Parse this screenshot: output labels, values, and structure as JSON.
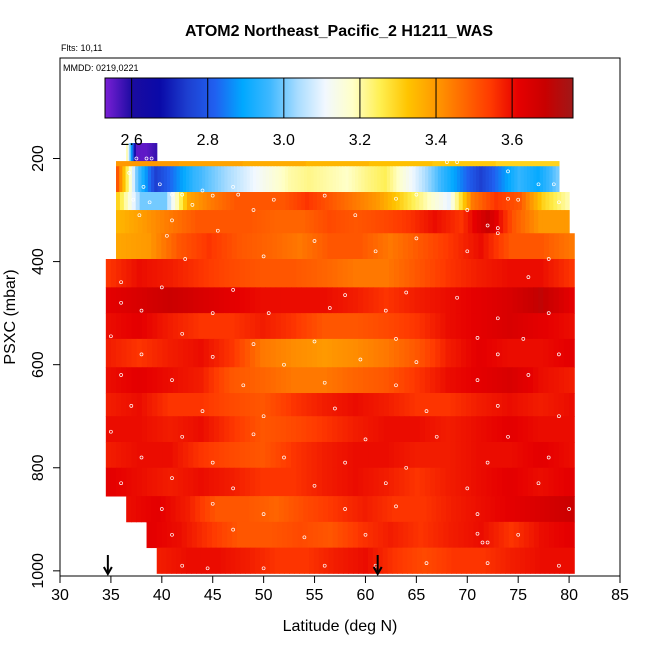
{
  "chart_data": {
    "type": "heatmap",
    "title": "ATOM2 Northeast_Pacific_2 H1211_WAS",
    "annotations": [
      "Flts: 10,11",
      "MMDD: 0219,0221"
    ],
    "xlabel": "Latitude (deg N)",
    "ylabel": "PSXC (mbar)",
    "xlim": [
      30,
      85
    ],
    "ylim": [
      1010,
      5
    ],
    "x_ticks": [
      30,
      35,
      40,
      45,
      50,
      55,
      60,
      65,
      70,
      75,
      80,
      85
    ],
    "y_ticks": [
      200,
      400,
      600,
      800,
      1000
    ],
    "colorbar": {
      "range": [
        2.53,
        3.76
      ],
      "ticks": [
        2.6,
        2.8,
        3.0,
        3.2,
        3.4,
        3.6
      ],
      "colors": [
        "#7a1fd6",
        "#1a0ba0",
        "#0a0aa8",
        "#1d3fd0",
        "#2060f0",
        "#00a8ff",
        "#3fb8ff",
        "#a8dcff",
        "#f2f8ff",
        "#ffffc8",
        "#ffef50",
        "#ffc400",
        "#ff9a00",
        "#ff6a00",
        "#ff3a00",
        "#e60000",
        "#c80000",
        "#a01818"
      ]
    },
    "arrows_at_latitude": [
      34.7,
      61.2
    ],
    "rows": [
      {
        "p_top": 170,
        "p_bot": 205,
        "lat0": 36.5,
        "lat1": 39.5,
        "values": [
          3.2,
          2.55,
          2.55,
          2.58
        ]
      },
      {
        "p_top": 205,
        "p_bot": 215,
        "lat0": 35.5,
        "lat1": 79,
        "values": [
          3.4,
          3.3
        ]
      },
      {
        "p_top": 215,
        "p_bot": 265,
        "lat0": 35.5,
        "lat1": 79,
        "values": [
          3.5,
          3.0,
          2.75,
          2.85,
          2.95,
          3.0,
          3.05,
          3.1,
          3.15,
          3.2,
          3.22,
          3.2,
          3.18,
          3.22,
          3.25,
          3.15,
          3.05,
          2.95,
          2.85,
          2.75,
          2.85,
          2.95,
          2.9,
          3.0
        ]
      },
      {
        "p_top": 265,
        "p_bot": 300,
        "lat0": 35.5,
        "lat1": 80,
        "values": [
          3.3,
          3.0,
          3.0,
          3.38,
          3.45,
          3.5,
          3.5,
          3.5,
          3.55,
          3.5,
          3.45,
          3.4,
          3.3,
          3.2,
          3.1,
          3.45,
          3.55,
          3.5,
          3.3,
          3.2
        ]
      },
      {
        "p_top": 300,
        "p_bot": 345,
        "lat0": 35.5,
        "lat1": 80,
        "values": [
          3.35,
          3.4,
          3.45,
          3.5,
          3.5,
          3.5,
          3.48,
          3.48,
          3.52,
          3.5,
          3.52,
          3.55,
          3.6,
          3.55,
          3.68,
          3.5,
          3.4,
          3.4
        ]
      },
      {
        "p_top": 345,
        "p_bot": 395,
        "lat0": 35.5,
        "lat1": 80.5,
        "values": [
          3.38,
          3.4,
          3.5,
          3.55,
          3.5,
          3.48,
          3.45,
          3.5,
          3.5,
          3.45,
          3.5,
          3.55,
          3.6,
          3.5,
          3.5,
          3.45
        ]
      },
      {
        "p_top": 395,
        "p_bot": 450,
        "lat0": 34.5,
        "lat1": 80.5,
        "values": [
          3.55,
          3.6,
          3.58,
          3.55,
          3.52,
          3.5,
          3.5,
          3.48,
          3.45,
          3.45,
          3.5,
          3.55,
          3.58,
          3.6,
          3.6,
          3.55
        ]
      },
      {
        "p_top": 450,
        "p_bot": 500,
        "lat0": 34.5,
        "lat1": 80.5,
        "values": [
          3.62,
          3.65,
          3.68,
          3.65,
          3.62,
          3.6,
          3.6,
          3.6,
          3.58,
          3.55,
          3.58,
          3.6,
          3.62,
          3.65,
          3.7,
          3.62
        ]
      },
      {
        "p_top": 500,
        "p_bot": 550,
        "lat0": 34.5,
        "lat1": 80.5,
        "values": [
          3.6,
          3.62,
          3.58,
          3.55,
          3.55,
          3.58,
          3.55,
          3.5,
          3.5,
          3.52,
          3.55,
          3.6,
          3.62,
          3.65,
          3.62,
          3.6
        ]
      },
      {
        "p_top": 550,
        "p_bot": 605,
        "lat0": 34.5,
        "lat1": 80.5,
        "values": [
          3.58,
          3.55,
          3.58,
          3.6,
          3.55,
          3.45,
          3.42,
          3.4,
          3.42,
          3.45,
          3.5,
          3.58,
          3.62,
          3.6,
          3.6,
          3.62
        ]
      },
      {
        "p_top": 605,
        "p_bot": 655,
        "lat0": 34.5,
        "lat1": 80.5,
        "values": [
          3.6,
          3.62,
          3.6,
          3.58,
          3.5,
          3.48,
          3.45,
          3.45,
          3.48,
          3.5,
          3.55,
          3.6,
          3.62,
          3.65,
          3.6,
          3.58
        ]
      },
      {
        "p_top": 655,
        "p_bot": 700,
        "lat0": 34.5,
        "lat1": 80.5,
        "values": [
          3.58,
          3.6,
          3.55,
          3.55,
          3.52,
          3.5,
          3.55,
          3.58,
          3.6,
          3.58,
          3.55,
          3.55,
          3.58,
          3.6,
          3.58,
          3.6
        ]
      },
      {
        "p_top": 700,
        "p_bot": 750,
        "lat0": 34.5,
        "lat1": 80.5,
        "values": [
          3.6,
          3.6,
          3.58,
          3.6,
          3.55,
          3.5,
          3.52,
          3.55,
          3.58,
          3.6,
          3.6,
          3.58,
          3.6,
          3.62,
          3.6,
          3.6
        ]
      },
      {
        "p_top": 750,
        "p_bot": 800,
        "lat0": 34.5,
        "lat1": 80.5,
        "values": [
          3.58,
          3.6,
          3.6,
          3.55,
          3.52,
          3.5,
          3.55,
          3.58,
          3.6,
          3.6,
          3.58,
          3.58,
          3.6,
          3.6,
          3.62,
          3.6
        ]
      },
      {
        "p_top": 800,
        "p_bot": 855,
        "lat0": 34.5,
        "lat1": 80.5,
        "values": [
          3.62,
          3.6,
          3.58,
          3.6,
          3.58,
          3.55,
          3.55,
          3.58,
          3.6,
          3.58,
          3.55,
          3.58,
          3.6,
          3.62,
          3.6,
          3.62
        ]
      },
      {
        "p_top": 855,
        "p_bot": 905,
        "lat0": 36.5,
        "lat1": 80.5,
        "values": [
          3.6,
          3.62,
          3.58,
          3.5,
          3.5,
          3.48,
          3.52,
          3.55,
          3.58,
          3.55,
          3.55,
          3.58,
          3.6,
          3.62,
          3.65,
          3.68
        ]
      },
      {
        "p_top": 905,
        "p_bot": 955,
        "lat0": 38.5,
        "lat1": 80.5,
        "values": [
          3.62,
          3.6,
          3.55,
          3.5,
          3.5,
          3.52,
          3.5,
          3.55,
          3.58,
          3.55,
          3.58,
          3.6,
          3.55,
          3.6,
          3.62
        ]
      },
      {
        "p_top": 955,
        "p_bot": 1005,
        "lat0": 39.5,
        "lat1": 80.5,
        "values": [
          3.58,
          3.6,
          3.6,
          3.58,
          3.55,
          3.55,
          3.58,
          3.6,
          3.55,
          3.52,
          3.55,
          3.55,
          3.58,
          3.6,
          3.6
        ]
      }
    ],
    "points": [
      [
        37.5,
        200
      ],
      [
        38.5,
        200
      ],
      [
        39,
        200
      ],
      [
        68,
        207
      ],
      [
        69,
        207
      ],
      [
        36.8,
        228
      ],
      [
        38.2,
        255
      ],
      [
        39.8,
        250
      ],
      [
        44,
        262
      ],
      [
        47,
        255
      ],
      [
        74,
        225
      ],
      [
        77,
        250
      ],
      [
        78.5,
        250
      ],
      [
        41,
        270
      ],
      [
        42,
        270
      ],
      [
        45,
        272
      ],
      [
        47.5,
        270
      ],
      [
        37.2,
        280
      ],
      [
        38.8,
        285
      ],
      [
        43,
        290
      ],
      [
        51,
        280
      ],
      [
        56,
        272
      ],
      [
        63,
        278
      ],
      [
        65,
        270
      ],
      [
        74,
        278
      ],
      [
        75,
        280
      ],
      [
        79,
        285
      ],
      [
        37.8,
        310
      ],
      [
        41,
        320
      ],
      [
        49,
        300
      ],
      [
        59,
        310
      ],
      [
        70,
        300
      ],
      [
        72,
        330
      ],
      [
        73,
        335
      ],
      [
        40.5,
        350
      ],
      [
        45.5,
        340
      ],
      [
        55,
        360
      ],
      [
        65,
        355
      ],
      [
        73,
        345
      ],
      [
        42.3,
        395
      ],
      [
        50,
        390
      ],
      [
        61,
        380
      ],
      [
        70,
        380
      ],
      [
        78,
        395
      ],
      [
        36,
        440
      ],
      [
        40,
        450
      ],
      [
        47,
        455
      ],
      [
        58,
        465
      ],
      [
        64,
        460
      ],
      [
        69,
        470
      ],
      [
        76,
        430
      ],
      [
        36,
        480
      ],
      [
        38,
        495
      ],
      [
        45,
        500
      ],
      [
        50.5,
        500
      ],
      [
        56.5,
        490
      ],
      [
        62,
        495
      ],
      [
        73,
        510
      ],
      [
        78,
        500
      ],
      [
        35,
        545
      ],
      [
        42,
        540
      ],
      [
        49,
        560
      ],
      [
        55,
        555
      ],
      [
        63,
        550
      ],
      [
        71,
        548
      ],
      [
        75.5,
        550
      ],
      [
        38,
        580
      ],
      [
        45,
        585
      ],
      [
        52,
        600
      ],
      [
        59.5,
        590
      ],
      [
        65,
        595
      ],
      [
        73,
        580
      ],
      [
        79,
        580
      ],
      [
        36,
        620
      ],
      [
        41,
        630
      ],
      [
        48,
        640
      ],
      [
        56,
        635
      ],
      [
        63,
        640
      ],
      [
        71,
        630
      ],
      [
        76,
        620
      ],
      [
        37,
        680
      ],
      [
        44,
        690
      ],
      [
        50,
        700
      ],
      [
        57,
        685
      ],
      [
        66,
        690
      ],
      [
        73,
        680
      ],
      [
        79,
        700
      ],
      [
        35,
        730
      ],
      [
        42,
        740
      ],
      [
        49,
        735
      ],
      [
        60,
        745
      ],
      [
        67,
        740
      ],
      [
        74,
        740
      ],
      [
        38,
        780
      ],
      [
        45,
        790
      ],
      [
        52,
        780
      ],
      [
        58,
        790
      ],
      [
        64,
        800
      ],
      [
        72,
        790
      ],
      [
        78,
        780
      ],
      [
        36,
        830
      ],
      [
        41,
        820
      ],
      [
        47,
        840
      ],
      [
        55,
        835
      ],
      [
        62,
        830
      ],
      [
        70,
        840
      ],
      [
        77,
        830
      ],
      [
        40,
        880
      ],
      [
        45,
        870
      ],
      [
        50,
        890
      ],
      [
        58,
        880
      ],
      [
        63,
        875
      ],
      [
        71,
        890
      ],
      [
        80,
        880
      ],
      [
        41,
        930
      ],
      [
        47,
        920
      ],
      [
        54,
        935
      ],
      [
        60,
        930
      ],
      [
        71,
        928
      ],
      [
        71.5,
        945
      ],
      [
        72,
        945
      ],
      [
        75,
        930
      ],
      [
        42,
        990
      ],
      [
        44.5,
        995
      ],
      [
        50,
        995
      ],
      [
        56,
        990
      ],
      [
        61,
        990
      ],
      [
        66,
        985
      ],
      [
        72,
        985
      ],
      [
        79,
        990
      ]
    ]
  }
}
